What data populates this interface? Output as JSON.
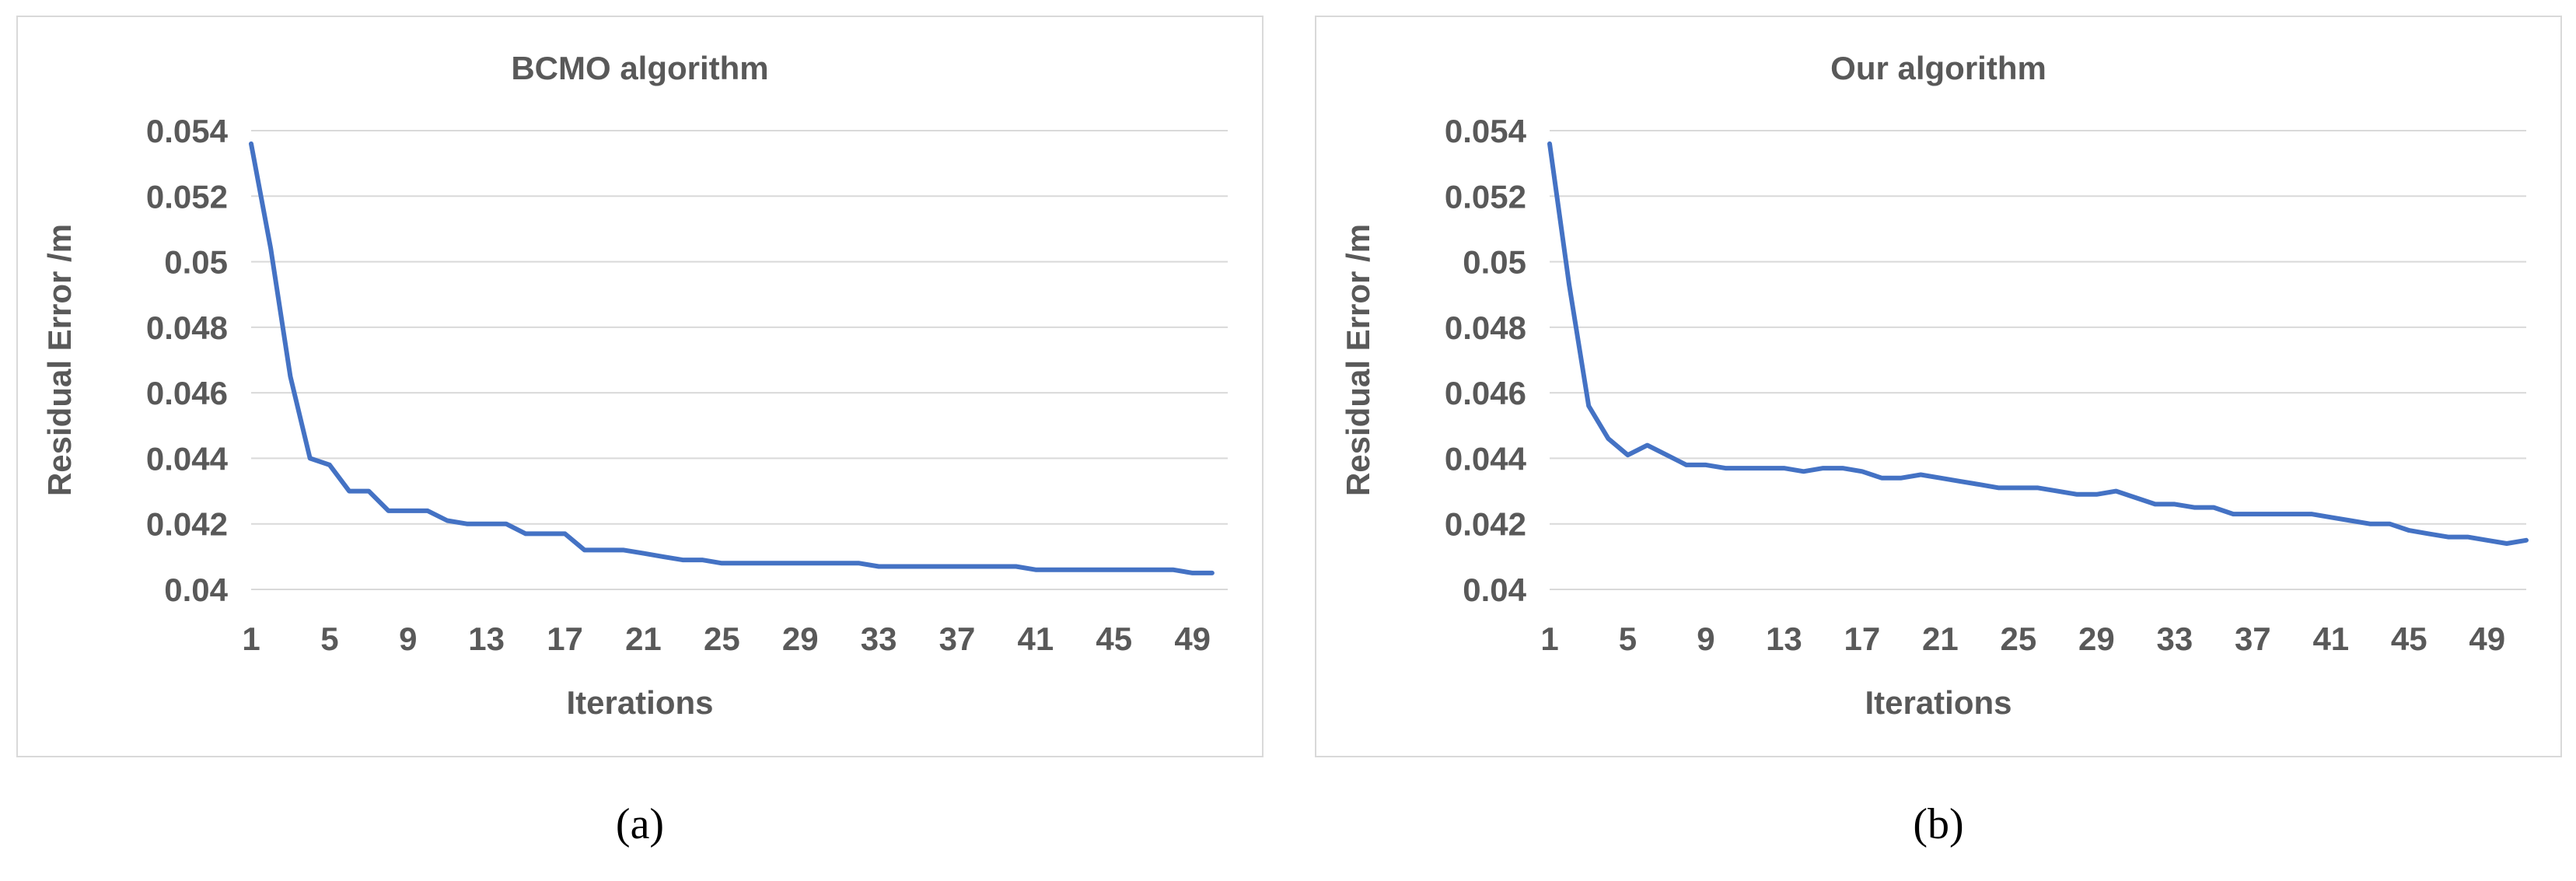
{
  "chart_data": [
    {
      "type": "line",
      "title": "BCMO algorithm",
      "xlabel": "Iterations",
      "ylabel": "Residual Error /m",
      "ylim": [
        0.04,
        0.054
      ],
      "y_ticks": [
        "0.04",
        "0.042",
        "0.044",
        "0.046",
        "0.048",
        "0.05",
        "0.052",
        "0.054"
      ],
      "x_ticks": [
        "1",
        "5",
        "9",
        "13",
        "17",
        "21",
        "25",
        "29",
        "33",
        "37",
        "41",
        "45",
        "49"
      ],
      "grid": true,
      "color": "#4472c4",
      "x": [
        1,
        2,
        3,
        4,
        5,
        6,
        7,
        8,
        9,
        10,
        11,
        12,
        13,
        14,
        15,
        16,
        17,
        18,
        19,
        20,
        21,
        22,
        23,
        24,
        25,
        26,
        27,
        28,
        29,
        30,
        31,
        32,
        33,
        34,
        35,
        36,
        37,
        38,
        39,
        40,
        41,
        42,
        43,
        44,
        45,
        46,
        47,
        48,
        49,
        50
      ],
      "values": [
        0.0536,
        0.0504,
        0.0465,
        0.044,
        0.0438,
        0.043,
        0.043,
        0.0424,
        0.0424,
        0.0424,
        0.0421,
        0.042,
        0.042,
        0.042,
        0.0417,
        0.0417,
        0.0417,
        0.0412,
        0.0412,
        0.0412,
        0.0411,
        0.041,
        0.0409,
        0.0409,
        0.0408,
        0.0408,
        0.0408,
        0.0408,
        0.0408,
        0.0408,
        0.0408,
        0.0408,
        0.0407,
        0.0407,
        0.0407,
        0.0407,
        0.0407,
        0.0407,
        0.0407,
        0.0407,
        0.0406,
        0.0406,
        0.0406,
        0.0406,
        0.0406,
        0.0406,
        0.0406,
        0.0406,
        0.0405,
        0.0405
      ]
    },
    {
      "type": "line",
      "title": "Our algorithm",
      "xlabel": "Iterations",
      "ylabel": "Residual Error /m",
      "ylim": [
        0.04,
        0.054
      ],
      "y_ticks": [
        "0.04",
        "0.042",
        "0.044",
        "0.046",
        "0.048",
        "0.05",
        "0.052",
        "0.054"
      ],
      "x_ticks": [
        "1",
        "5",
        "9",
        "13",
        "17",
        "21",
        "25",
        "29",
        "33",
        "37",
        "41",
        "45",
        "49"
      ],
      "grid": true,
      "color": "#4472c4",
      "x": [
        1,
        2,
        3,
        4,
        5,
        6,
        7,
        8,
        9,
        10,
        11,
        12,
        13,
        14,
        15,
        16,
        17,
        18,
        19,
        20,
        21,
        22,
        23,
        24,
        25,
        26,
        27,
        28,
        29,
        30,
        31,
        32,
        33,
        34,
        35,
        36,
        37,
        38,
        39,
        40,
        41,
        42,
        43,
        44,
        45,
        46,
        47,
        48,
        49,
        50,
        51
      ],
      "values": [
        0.0536,
        0.0493,
        0.0456,
        0.0446,
        0.0441,
        0.0444,
        0.0441,
        0.0438,
        0.0438,
        0.0437,
        0.0437,
        0.0437,
        0.0437,
        0.0436,
        0.0437,
        0.0437,
        0.0436,
        0.0434,
        0.0434,
        0.0435,
        0.0434,
        0.0433,
        0.0432,
        0.0431,
        0.0431,
        0.0431,
        0.043,
        0.0429,
        0.0429,
        0.043,
        0.0428,
        0.0426,
        0.0426,
        0.0425,
        0.0425,
        0.0423,
        0.0423,
        0.0423,
        0.0423,
        0.0423,
        0.0422,
        0.0421,
        0.042,
        0.042,
        0.0418,
        0.0417,
        0.0416,
        0.0416,
        0.0415,
        0.0414,
        0.0415
      ]
    }
  ],
  "captions": [
    "(a)",
    "(b)"
  ]
}
